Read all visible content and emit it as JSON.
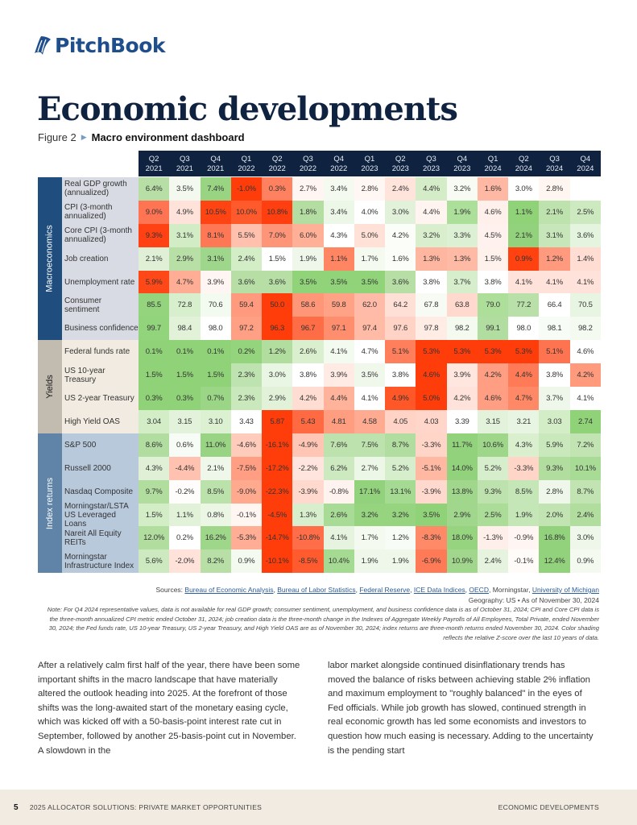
{
  "brand": {
    "name": "PitchBook",
    "icon": "pitchbook-sail-icon",
    "color": "#1f4e8c"
  },
  "page": {
    "title": "Economic developments"
  },
  "figure": {
    "number": "Figure 2",
    "title": "Macro environment dashboard"
  },
  "table": {
    "columns": [
      {
        "q": "Q2",
        "y": "2021"
      },
      {
        "q": "Q3",
        "y": "2021"
      },
      {
        "q": "Q4",
        "y": "2021"
      },
      {
        "q": "Q1",
        "y": "2022"
      },
      {
        "q": "Q2",
        "y": "2022"
      },
      {
        "q": "Q3",
        "y": "2022"
      },
      {
        "q": "Q4",
        "y": "2022"
      },
      {
        "q": "Q1",
        "y": "2023"
      },
      {
        "q": "Q2",
        "y": "2023"
      },
      {
        "q": "Q3",
        "y": "2023"
      },
      {
        "q": "Q4",
        "y": "2023"
      },
      {
        "q": "Q1",
        "y": "2024"
      },
      {
        "q": "Q2",
        "y": "2024"
      },
      {
        "q": "Q3",
        "y": "2024"
      },
      {
        "q": "Q4",
        "y": "2024"
      }
    ],
    "sections": [
      {
        "name": "Macroeconomics",
        "band_color": "#1f4e7e",
        "band_text": "#ffffff",
        "label_bg": "#d8dbe3",
        "rows": [
          {
            "label": "Real GDP growth (annualized)",
            "values": [
              "6.4%",
              "3.5%",
              "7.4%",
              "-1.0%",
              "0.3%",
              "2.7%",
              "3.4%",
              "2.8%",
              "2.4%",
              "4.4%",
              "3.2%",
              "1.6%",
              "3.0%",
              "2.8%",
              ""
            ],
            "colors": [
              "#b7dfa5",
              "#f3f9ef",
              "#98d482",
              "#ff3d0a",
              "#ff8160",
              "#fff5f2",
              "#f4faf0",
              "#fff7f4",
              "#ffe4dc",
              "#d5ecc9",
              "#f7fbf4",
              "#ffb8a3",
              "#ffffff",
              "#fff5f1",
              "#ffffff"
            ]
          },
          {
            "label": "CPI (3-month annualized)",
            "values": [
              "9.0%",
              "4.9%",
              "10.5%",
              "10.0%",
              "10.8%",
              "1.8%",
              "3.4%",
              "4.0%",
              "3.0%",
              "4.4%",
              "1.9%",
              "4.6%",
              "1.1%",
              "2.1%",
              "2.5%"
            ],
            "colors": [
              "#ff7554",
              "#ffe3da",
              "#ff4414",
              "#ff5a2c",
              "#ff3f0f",
              "#b4dda2",
              "#edf7e8",
              "#ffffff",
              "#e2f2da",
              "#fff4f0",
              "#ace09a",
              "#fff0eb",
              "#8fd278",
              "#bde2ad",
              "#cde9bf"
            ]
          },
          {
            "label": "Core CPI (3-month annualized)",
            "values": [
              "9.3%",
              "3.1%",
              "8.1%",
              "5.5%",
              "7.0%",
              "6.0%",
              "4.3%",
              "5.0%",
              "4.2%",
              "3.2%",
              "3.3%",
              "4.5%",
              "2.1%",
              "3.1%",
              "3.6%"
            ],
            "colors": [
              "#ff4114",
              "#d2edc6",
              "#ff7856",
              "#ffc0ae",
              "#ff9578",
              "#ffb096",
              "#ffffff",
              "#ffe1d8",
              "#fafdf8",
              "#d8eecd",
              "#dcf0d3",
              "#fff2ee",
              "#92d27c",
              "#c7e6b9",
              "#e5f4de"
            ]
          },
          {
            "label": "Job creation",
            "values": [
              "2.1%",
              "2.9%",
              "3.1%",
              "2.4%",
              "1.5%",
              "1.9%",
              "1.1%",
              "1.7%",
              "1.6%",
              "1.3%",
              "1.3%",
              "1.5%",
              "0.9%",
              "1.2%",
              "1.4%"
            ],
            "colors": [
              "#dff0d6",
              "#b7dfa6",
              "#9ed78b",
              "#d3edc7",
              "#ffffff",
              "#eef7ea",
              "#ff8563",
              "#f4faf0",
              "#fbfdf9",
              "#ffb6a0",
              "#ffbaa6",
              "#fff1ec",
              "#ff420f",
              "#ff9a7e",
              "#ffddd3"
            ]
          },
          {
            "label": "Unemployment rate",
            "values": [
              "5.9%",
              "4.7%",
              "3.9%",
              "3.6%",
              "3.6%",
              "3.5%",
              "3.5%",
              "3.5%",
              "3.6%",
              "3.8%",
              "3.7%",
              "3.8%",
              "4.1%",
              "4.1%",
              "4.1%"
            ],
            "colors": [
              "#ff4818",
              "#ffad94",
              "#fff6f3",
              "#b6dea5",
              "#b6dea5",
              "#90d379",
              "#90d379",
              "#90d379",
              "#b6dea5",
              "#ffffff",
              "#d6eecb",
              "#ffffff",
              "#ffe2d9",
              "#ffe2d9",
              "#ffe2d9"
            ]
          },
          {
            "label": "Consumer sentiment",
            "values": [
              "85.5",
              "72.8",
              "70.6",
              "59.4",
              "50.0",
              "58.6",
              "59.8",
              "62.0",
              "64.2",
              "67.8",
              "63.8",
              "79.0",
              "77.2",
              "66.4",
              "70.5"
            ],
            "colors": [
              "#93d47c",
              "#d8efcd",
              "#f3faf0",
              "#ff9a7e",
              "#ff3d0a",
              "#ff9677",
              "#ffa286",
              "#ffbba7",
              "#ffe0d6",
              "#f7fbf4",
              "#ffd9cd",
              "#addf9b",
              "#b9e0a8",
              "#ffffff",
              "#e8f5e2"
            ]
          },
          {
            "label": "Business confidence",
            "values": [
              "99.7",
              "98.4",
              "98.0",
              "97.2",
              "96.3",
              "96.7",
              "97.1",
              "97.4",
              "97.6",
              "97.8",
              "98.2",
              "99.1",
              "98.0",
              "98.1",
              "98.2"
            ],
            "colors": [
              "#92d47b",
              "#e1f2d9",
              "#ffffff",
              "#ff9f83",
              "#ff3d0a",
              "#ff6d46",
              "#ff8e6f",
              "#ffbba6",
              "#ffd3c5",
              "#ffece5",
              "#f4faf0",
              "#b1dda0",
              "#ffffff",
              "#f8fcf6",
              "#f4faf0"
            ]
          }
        ]
      },
      {
        "name": "Yields",
        "band_color": "#c1bbb0",
        "band_text": "#1a1a1a",
        "label_bg": "#f1ebe1",
        "rows": [
          {
            "label": "Federal funds rate",
            "values": [
              "0.1%",
              "0.1%",
              "0.1%",
              "0.2%",
              "1.2%",
              "2.6%",
              "4.1%",
              "4.7%",
              "5.1%",
              "5.3%",
              "5.3%",
              "5.3%",
              "5.3%",
              "5.1%",
              "4.6%"
            ],
            "colors": [
              "#8fd278",
              "#8fd278",
              "#8fd278",
              "#93d47c",
              "#b1dd9f",
              "#d9efce",
              "#f3faef",
              "#ffffff",
              "#ff7f5d",
              "#ff3d0a",
              "#ff3d0a",
              "#ff3d0a",
              "#ff3d0a",
              "#ff7450",
              "#ffffff"
            ]
          },
          {
            "label": "US 10-year Treasury",
            "values": [
              "1.5%",
              "1.5%",
              "1.5%",
              "2.3%",
              "3.0%",
              "3.8%",
              "3.9%",
              "3.5%",
              "3.8%",
              "4.6%",
              "3.9%",
              "4.2%",
              "4.4%",
              "3.8%",
              "4.2%"
            ],
            "colors": [
              "#8fd278",
              "#8fd278",
              "#8fd278",
              "#bfe3b0",
              "#eaf6e4",
              "#ffffff",
              "#ffeae4",
              "#f0f8ec",
              "#ffffff",
              "#ff3d0a",
              "#ffe6de",
              "#ff9e82",
              "#ff7a57",
              "#ffffff",
              "#ff9a7d"
            ]
          },
          {
            "label": "US 2-year Treasury",
            "values": [
              "0.3%",
              "0.3%",
              "0.7%",
              "2.3%",
              "2.9%",
              "4.2%",
              "4.4%",
              "4.1%",
              "4.9%",
              "5.0%",
              "4.2%",
              "4.6%",
              "4.7%",
              "3.7%",
              "4.1%"
            ],
            "colors": [
              "#8fd278",
              "#8fd278",
              "#9bd686",
              "#c9e8bc",
              "#e2f2d9",
              "#ffddd2",
              "#ffb39b",
              "#ffffff",
              "#ff5727",
              "#ff3d0a",
              "#ffe3da",
              "#ff9e82",
              "#ff8966",
              "#eef7ea",
              "#ffffff"
            ]
          },
          {
            "label": "High Yield OAS",
            "values": [
              "3.04",
              "3.15",
              "3.10",
              "3.43",
              "5.87",
              "5.43",
              "4.81",
              "4.58",
              "4.05",
              "4.03",
              "3.39",
              "3.15",
              "3.21",
              "3.03",
              "2.74"
            ],
            "colors": [
              "#d3edc7",
              "#e3f3db",
              "#dcf0d2",
              "#ffffff",
              "#ff3d0a",
              "#ff6a43",
              "#ff9d80",
              "#ffab92",
              "#ffd3c5",
              "#ffd6c9",
              "#ffffff",
              "#e3f3db",
              "#e9f5e3",
              "#d3edc7",
              "#8fd278"
            ]
          }
        ]
      },
      {
        "name": "Index returns",
        "band_color": "#5f84a8",
        "band_text": "#ffffff",
        "label_bg": "#b8c9dc",
        "rows": [
          {
            "label": "S&P 500",
            "values": [
              "8.6%",
              "0.6%",
              "11.0%",
              "-4.6%",
              "-16.1%",
              "-4.9%",
              "7.6%",
              "7.5%",
              "8.7%",
              "-3.3%",
              "11.7%",
              "10.6%",
              "4.3%",
              "5.9%",
              "7.2%"
            ],
            "colors": [
              "#b2dda1",
              "#f8fcf6",
              "#98d483",
              "#ffcbbb",
              "#ff3d0a",
              "#ffc6b5",
              "#bde2ad",
              "#bde2ad",
              "#b2dda1",
              "#ffd5c8",
              "#92d27c",
              "#9ed68a",
              "#d9efce",
              "#c9e8bc",
              "#c1e4b2"
            ]
          },
          {
            "label": "Russell 2000",
            "values": [
              "4.3%",
              "-4.4%",
              "2.1%",
              "-7.5%",
              "-17.2%",
              "-2.2%",
              "6.2%",
              "2.7%",
              "5.2%",
              "-5.1%",
              "14.0%",
              "5.2%",
              "-3.3%",
              "9.3%",
              "10.1%"
            ],
            "colors": [
              "#dff0d6",
              "#ffc2b0",
              "#eef7ea",
              "#ff9e82",
              "#ff3d0a",
              "#ffe5dd",
              "#cde9bf",
              "#ecf7e7",
              "#d6eecb",
              "#ffb8a2",
              "#92d27c",
              "#d6eecb",
              "#ffd5c8",
              "#b1dd9f",
              "#a8db95"
            ]
          },
          {
            "label": "Nasdaq Composite",
            "values": [
              "9.7%",
              "-0.2%",
              "8.5%",
              "-9.0%",
              "-22.3%",
              "-3.9%",
              "-0.8%",
              "17.1%",
              "13.1%",
              "-3.9%",
              "13.8%",
              "9.3%",
              "8.5%",
              "2.8%",
              "8.7%"
            ],
            "colors": [
              "#b1dd9f",
              "#fffdfc",
              "#bce2ac",
              "#ffa98f",
              "#ff3d0a",
              "#ffd9cd",
              "#fff3ef",
              "#92d27c",
              "#a5da92",
              "#ffd9cd",
              "#a0d78c",
              "#bde2ad",
              "#c5e6b7",
              "#eef7ea",
              "#c1e4b2"
            ]
          },
          {
            "label": "Morningstar/LSTA US Leveraged Loans",
            "values": [
              "1.5%",
              "1.1%",
              "0.8%",
              "-0.1%",
              "-4.5%",
              "1.3%",
              "2.6%",
              "3.2%",
              "3.2%",
              "3.5%",
              "2.9%",
              "2.5%",
              "1.9%",
              "2.0%",
              "2.4%"
            ],
            "colors": [
              "#d3edc7",
              "#e1f2d9",
              "#ebf6e5",
              "#fff6f2",
              "#ff3d0a",
              "#d8efce",
              "#a8db95",
              "#96d480",
              "#96d480",
              "#8fd278",
              "#a0d78c",
              "#abdc98",
              "#c5e6b7",
              "#c1e4b2",
              "#b1dd9f"
            ]
          },
          {
            "label": "Nareit All Equity REITs",
            "values": [
              "12.0%",
              "0.2%",
              "16.2%",
              "-5.3%",
              "-14.7%",
              "-10.8%",
              "4.1%",
              "1.7%",
              "1.2%",
              "-8.3%",
              "18.0%",
              "-1.3%",
              "-0.9%",
              "16.8%",
              "3.0%"
            ],
            "colors": [
              "#b1dd9f",
              "#ffffff",
              "#9ed68a",
              "#ffad95",
              "#ff3d0a",
              "#ff6e48",
              "#e6f4df",
              "#f4faf0",
              "#f8fcf6",
              "#ff8a68",
              "#96d480",
              "#ffefea",
              "#fff5f2",
              "#92d27c",
              "#eef7ea"
            ]
          },
          {
            "label": "Morningstar Infrastructure Index",
            "values": [
              "5.6%",
              "-2.0%",
              "8.2%",
              "0.9%",
              "-10.1%",
              "-8.5%",
              "10.4%",
              "1.9%",
              "1.9%",
              "-6.9%",
              "10.9%",
              "2.4%",
              "-0.1%",
              "12.4%",
              "0.9%"
            ],
            "colors": [
              "#cde9bf",
              "#ffe2d9",
              "#b7dfa6",
              "#f4faf0",
              "#ff3d0a",
              "#ff5b2e",
              "#a5da92",
              "#eef7ea",
              "#eef7ea",
              "#ff7a57",
              "#a0d78c",
              "#e6f4df",
              "#fffbf9",
              "#92d27c",
              "#f4faf0"
            ]
          }
        ]
      }
    ]
  },
  "sources": {
    "prefix": "Sources: ",
    "links": [
      "Bureau of Economic Analysis",
      "Bureau of Labor Statistics",
      "Federal Reserve",
      "ICE Data Indices",
      "OECD"
    ],
    "plain": "Morningstar",
    "last_link": "University of Michigan"
  },
  "geography": "Geography: US  •  As of November 30, 2024",
  "note": "Note: For Q4 2024 representative values, data is not available for real GDP growth; consumer sentiment, unemployment, and business confidence data is as of October 31, 2024; CPI and Core CPI data is the three-month annualized CPI metric ended October 31, 2024; job creation data is the three-month change in the Indexes of Aggregate Weekly Payrolls of All Employees, Total Private, ended November 30, 2024; the Fed funds rate, US 10-year Treasury, US 2-year Treasury, and High Yield OAS are as of November 30, 2024; index returns are three-month returns ended November 30, 2024. Color shading reflects the relative Z-score over the last 10 years of data.",
  "body": {
    "left": "After a relatively calm first half of the year, there have been some important shifts in the macro landscape that have materially altered the outlook heading into 2025. At the forefront of those shifts was the long-awaited start of the monetary easing cycle, which was kicked off with a 50-basis-point interest rate cut in September, followed by another 25-basis-point cut in November. A slowdown in the",
    "right": "labor market alongside continued disinflationary trends has moved the balance of risks between achieving stable 2% inflation and maximum employment to \"roughly balanced\" in the eyes of Fed officials. While job growth has slowed, continued strength in real economic growth has led some economists and investors to question how much easing is necessary. Adding to the uncertainty is the pending start"
  },
  "footer": {
    "page_number": "5",
    "publication": "2025 ALLOCATOR SOLUTIONS: PRIVATE MARKET OPPORTUNITIES",
    "section": "ECONOMIC DEVELOPMENTS"
  }
}
